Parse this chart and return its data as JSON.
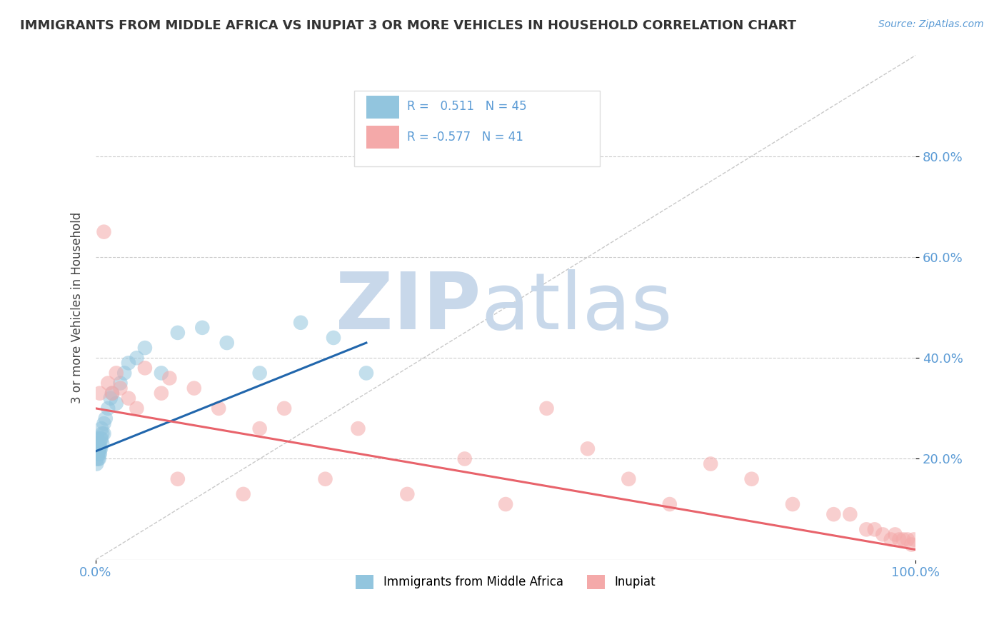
{
  "title": "IMMIGRANTS FROM MIDDLE AFRICA VS INUPIAT 3 OR MORE VEHICLES IN HOUSEHOLD CORRELATION CHART",
  "source": "Source: ZipAtlas.com",
  "ylabel": "3 or more Vehicles in Household",
  "xlim": [
    0,
    1.0
  ],
  "ylim": [
    0,
    1.0
  ],
  "ytick_vals": [
    0.2,
    0.4,
    0.6,
    0.8
  ],
  "ytick_labels": [
    "20.0%",
    "40.0%",
    "60.0%",
    "80.0%"
  ],
  "blue_color": "#92c5de",
  "pink_color": "#f4a9a9",
  "blue_line_color": "#2166ac",
  "pink_line_color": "#e8636b",
  "background_color": "#ffffff",
  "grid_color": "#cccccc",
  "watermark_zip": "ZIP",
  "watermark_atlas": "atlas",
  "watermark_color": "#c8d8ea",
  "tick_color": "#5b9bd5",
  "blue_scatter_x": [
    0.001,
    0.001,
    0.001,
    0.001,
    0.001,
    0.002,
    0.002,
    0.002,
    0.002,
    0.003,
    0.003,
    0.003,
    0.003,
    0.004,
    0.004,
    0.004,
    0.005,
    0.005,
    0.005,
    0.006,
    0.006,
    0.007,
    0.007,
    0.008,
    0.008,
    0.01,
    0.01,
    0.012,
    0.015,
    0.018,
    0.02,
    0.025,
    0.03,
    0.035,
    0.04,
    0.05,
    0.06,
    0.08,
    0.1,
    0.13,
    0.16,
    0.2,
    0.25,
    0.29,
    0.33
  ],
  "blue_scatter_y": [
    0.22,
    0.21,
    0.23,
    0.2,
    0.19,
    0.22,
    0.21,
    0.23,
    0.24,
    0.2,
    0.22,
    0.21,
    0.23,
    0.22,
    0.21,
    0.2,
    0.23,
    0.22,
    0.21,
    0.24,
    0.22,
    0.26,
    0.24,
    0.25,
    0.23,
    0.27,
    0.25,
    0.28,
    0.3,
    0.32,
    0.33,
    0.31,
    0.35,
    0.37,
    0.39,
    0.4,
    0.42,
    0.37,
    0.45,
    0.46,
    0.43,
    0.37,
    0.47,
    0.44,
    0.37
  ],
  "pink_scatter_x": [
    0.005,
    0.01,
    0.015,
    0.02,
    0.025,
    0.03,
    0.04,
    0.05,
    0.06,
    0.08,
    0.09,
    0.1,
    0.12,
    0.15,
    0.18,
    0.2,
    0.23,
    0.28,
    0.32,
    0.38,
    0.45,
    0.5,
    0.55,
    0.6,
    0.65,
    0.7,
    0.75,
    0.8,
    0.85,
    0.9,
    0.92,
    0.94,
    0.95,
    0.96,
    0.97,
    0.975,
    0.98,
    0.985,
    0.99,
    0.995,
    0.998
  ],
  "pink_scatter_y": [
    0.33,
    0.65,
    0.35,
    0.33,
    0.37,
    0.34,
    0.32,
    0.3,
    0.38,
    0.33,
    0.36,
    0.16,
    0.34,
    0.3,
    0.13,
    0.26,
    0.3,
    0.16,
    0.26,
    0.13,
    0.2,
    0.11,
    0.3,
    0.22,
    0.16,
    0.11,
    0.19,
    0.16,
    0.11,
    0.09,
    0.09,
    0.06,
    0.06,
    0.05,
    0.04,
    0.05,
    0.04,
    0.04,
    0.04,
    0.03,
    0.04
  ],
  "blue_trend_x": [
    0.0,
    0.33
  ],
  "blue_trend_y": [
    0.215,
    0.43
  ],
  "pink_trend_x": [
    0.0,
    1.0
  ],
  "pink_trend_y": [
    0.3,
    0.02
  ]
}
